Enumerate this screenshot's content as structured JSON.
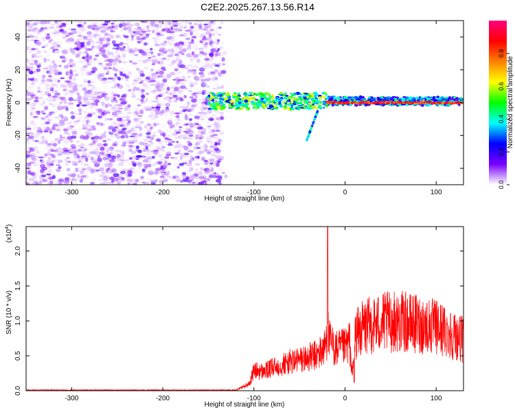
{
  "title": "C2E2.2025.267.13.56.R14",
  "chart_data": [
    {
      "type": "heatmap",
      "title": "C2E2.2025.267.13.56.R14",
      "xlabel": "Height of straight line (km)",
      "ylabel": "Frequency (Hz)",
      "xlim": [
        -350,
        130
      ],
      "ylim": [
        -50,
        50
      ],
      "x_ticks": [
        "-300",
        "-200",
        "-100",
        "0",
        "100"
      ],
      "y_ticks": [
        "-40",
        "-20",
        "0",
        "20",
        "40"
      ],
      "colorbar": {
        "label": "Normalized spectral amplitude",
        "range": [
          0,
          1
        ],
        "ticks": [
          "0.0",
          "0.2",
          "0.4",
          "0.6",
          "0.8"
        ],
        "colors": [
          "#ffffff",
          "#7a00ff",
          "#0000ff",
          "#00ffff",
          "#00ff00",
          "#ffff00",
          "#ff8000",
          "#ff0000",
          "#ff0080"
        ]
      },
      "features": [
        {
          "x_range": [
            -350,
            -140
          ],
          "freq_range": [
            -50,
            50
          ],
          "amplitude": 0.15
        },
        {
          "x_range": [
            -150,
            130
          ],
          "freq_center": 1,
          "freq_halfwidth": 5,
          "amplitude": 0.5
        },
        {
          "x_range": [
            -20,
            130
          ],
          "freq_center": 0,
          "freq_halfwidth": 1,
          "amplitude": 0.95
        },
        {
          "x_range": [
            -40,
            -30
          ],
          "freq_center": -20,
          "amplitude": 0.3
        }
      ]
    },
    {
      "type": "line",
      "xlabel": "Height of straight line (km)",
      "ylabel": "SNR (10 * v/v)",
      "y_multiplier": "(x10",
      "y_multiplier_exp": "4",
      "xlim": [
        -350,
        130
      ],
      "ylim": [
        0,
        2.35
      ],
      "x_ticks": [
        "-300",
        "-200",
        "-100",
        "0",
        "100"
      ],
      "y_ticks": [
        "0.0",
        "0.5",
        "1.0",
        "1.5",
        "2.0"
      ],
      "color": "#ff0000",
      "envelope": {
        "x": [
          -350,
          -120,
          -105,
          -100,
          -90,
          -75,
          -60,
          -45,
          -30,
          -22,
          -19,
          -17,
          -10,
          0,
          5,
          8,
          11,
          20,
          40,
          60,
          80,
          100,
          115,
          130
        ],
        "y": [
          0.01,
          0.01,
          0.12,
          0.35,
          0.33,
          0.42,
          0.5,
          0.55,
          0.62,
          0.75,
          1.05,
          0.85,
          0.72,
          0.75,
          0.85,
          0.25,
          0.95,
          1.1,
          1.18,
          1.2,
          1.15,
          1.1,
          1.0,
          0.88
        ]
      },
      "spikes": [
        {
          "x": -19,
          "y": 2.35
        },
        {
          "x": 10,
          "y": 0.12
        }
      ]
    }
  ]
}
